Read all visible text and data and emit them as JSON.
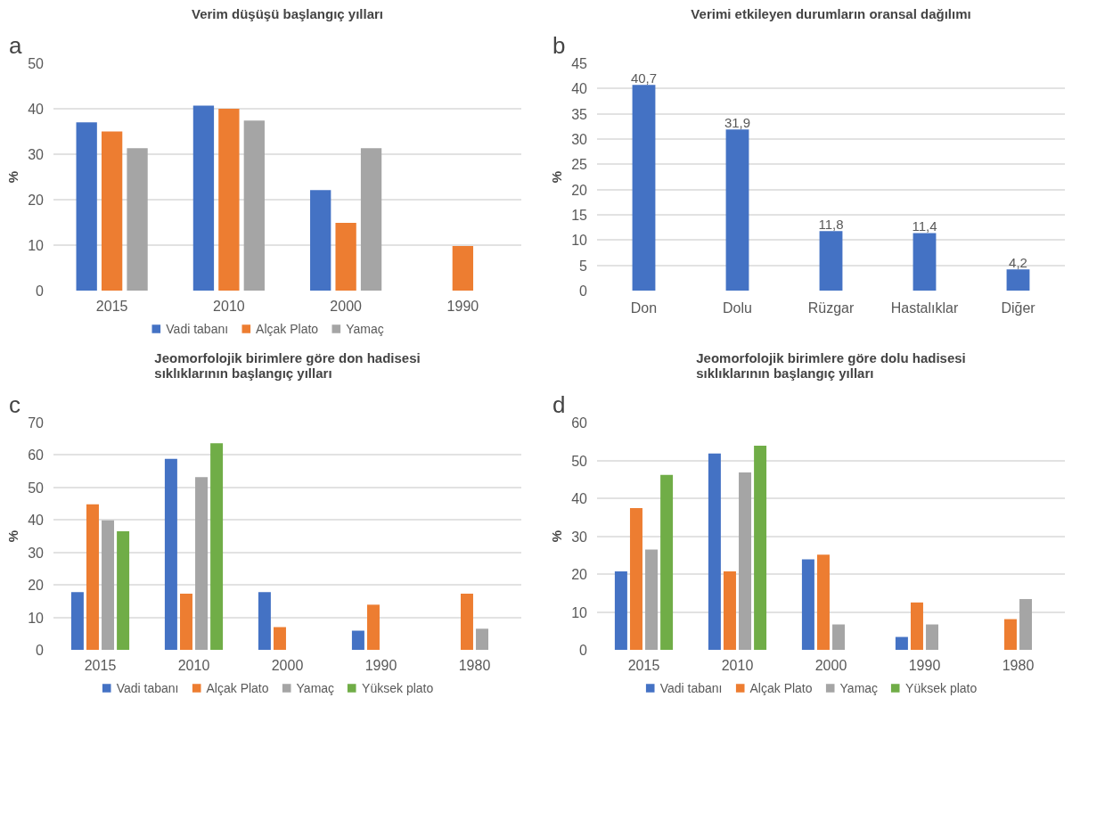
{
  "chart_data": [
    {
      "type": "bar",
      "title": "Verim düşüşü başlangıç yılları",
      "ylabel": "%",
      "annotations": [
        "a"
      ],
      "categories": [
        "2015",
        "2010",
        "2000",
        "1990"
      ],
      "ylim": [
        0,
        50
      ],
      "yticks": [
        0,
        10,
        20,
        30,
        40,
        50
      ],
      "grid": "y",
      "legend": "bottom",
      "series": [
        {
          "name": "Vadi tabanı",
          "color": "#4472c4",
          "values": [
            37,
            40.7,
            22.1,
            null
          ]
        },
        {
          "name": "Alçak Plato",
          "color": "#ed7d31",
          "values": [
            35,
            40,
            14.9,
            9.8
          ]
        },
        {
          "name": "Yamaç",
          "color": "#a5a5a5",
          "values": [
            31.3,
            37.4,
            31.3,
            null
          ]
        }
      ]
    },
    {
      "type": "bar",
      "title": "Verimi etkileyen durumların oransal dağılımı",
      "ylabel": "%",
      "annotations": [
        "b"
      ],
      "categories": [
        "Don",
        "Dolu",
        "Rüzgar",
        "Hastalıklar",
        "Diğer"
      ],
      "ylim": [
        0,
        45
      ],
      "yticks": [
        0,
        5,
        10,
        15,
        20,
        25,
        30,
        35,
        40,
        45
      ],
      "grid": "y",
      "series": [
        {
          "color": "#4472c4",
          "values": [
            40.7,
            31.9,
            11.8,
            11.4,
            4.2
          ],
          "value_labels": [
            "40,7",
            "31,9",
            "11,8",
            "11,4",
            "4,2"
          ]
        }
      ]
    },
    {
      "type": "bar",
      "title": "Jeomorfolojik birimlere göre don hadisesi\nsıklıklarının başlangıç yılları",
      "ylabel": "%",
      "annotations": [
        "c"
      ],
      "categories": [
        "2015",
        "2010",
        "2000",
        "1990",
        "1980"
      ],
      "ylim": [
        0,
        70
      ],
      "yticks": [
        0,
        10,
        20,
        30,
        40,
        50,
        60,
        70
      ],
      "grid": "y",
      "legend": "bottom",
      "series": [
        {
          "name": "Vadi tabanı",
          "color": "#4472c4",
          "values": [
            17.8,
            58.8,
            17.8,
            5.9,
            null
          ]
        },
        {
          "name": "Alçak Plato",
          "color": "#ed7d31",
          "values": [
            44.8,
            17.3,
            7.0,
            13.9,
            17.3
          ]
        },
        {
          "name": "Yamaç",
          "color": "#a5a5a5",
          "values": [
            39.9,
            53.2,
            null,
            null,
            6.5
          ]
        },
        {
          "name": "Yüksek plato",
          "color": "#70ad47",
          "values": [
            36.5,
            63.6,
            null,
            null,
            null
          ]
        }
      ]
    },
    {
      "type": "bar",
      "title": "Jeomorfolojik birimlere göre dolu hadisesi\nsıklıklarının başlangıç yılları",
      "ylabel": "%",
      "annotations": [
        "d"
      ],
      "categories": [
        "2015",
        "2010",
        "2000",
        "1990",
        "1980"
      ],
      "ylim": [
        0,
        60
      ],
      "yticks": [
        0,
        10,
        20,
        30,
        40,
        50,
        60
      ],
      "grid": "y",
      "legend": "bottom",
      "series": [
        {
          "name": "Vadi tabanı",
          "color": "#4472c4",
          "values": [
            20.7,
            51.8,
            23.9,
            3.4,
            null
          ]
        },
        {
          "name": "Alçak Plato",
          "color": "#ed7d31",
          "values": [
            37.4,
            20.7,
            25.1,
            12.5,
            8.1
          ]
        },
        {
          "name": "Yamaç",
          "color": "#a5a5a5",
          "values": [
            26.5,
            46.8,
            6.7,
            6.7,
            13.4
          ]
        },
        {
          "name": "Yüksek plato",
          "color": "#70ad47",
          "values": [
            46.2,
            53.9,
            null,
            null,
            null
          ]
        }
      ]
    }
  ]
}
